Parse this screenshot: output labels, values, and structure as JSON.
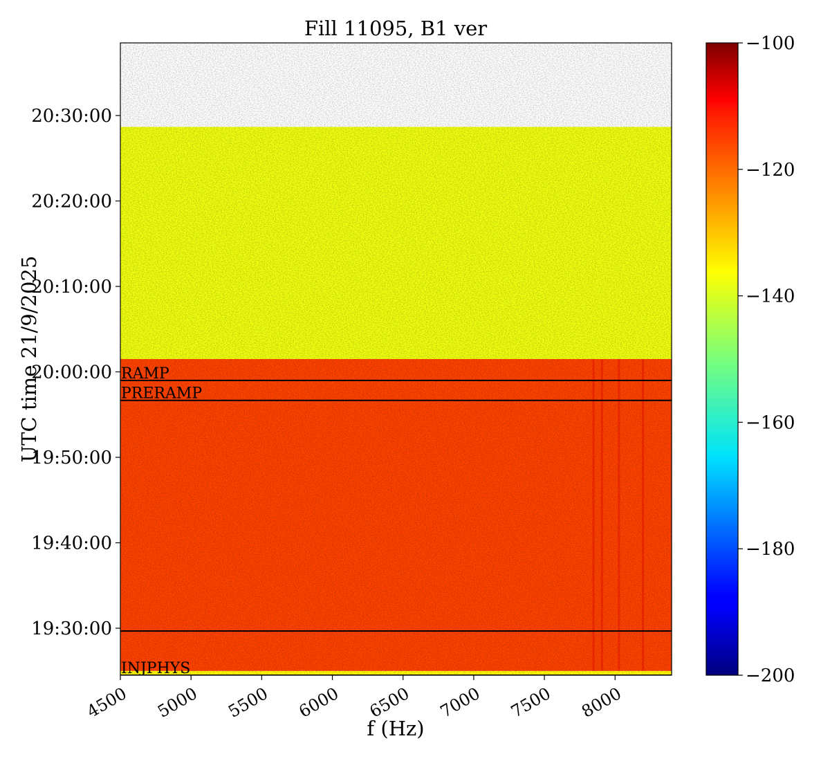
{
  "chart_data": {
    "type": "heatmap",
    "title": "Fill 11095, B1 ver",
    "xlabel": "f (Hz)",
    "ylabel": "UTC time 21/9/2025",
    "xlim": [
      4500,
      8400
    ],
    "ylim": [
      "19:24:30",
      "20:38:30"
    ],
    "x_ticks": [
      4500,
      5000,
      5500,
      6000,
      6500,
      7000,
      7500,
      8000
    ],
    "y_ticks": [
      "19:30:00",
      "19:40:00",
      "19:50:00",
      "20:00:00",
      "20:10:00",
      "20:20:00",
      "20:30:00"
    ],
    "colorbar": {
      "colormap": "jet",
      "range": [
        -200,
        -100
      ],
      "ticks": [
        -100,
        -120,
        -140,
        -160,
        -180,
        -200
      ],
      "tick_labels": [
        "−100",
        "−120",
        "−140",
        "−160",
        "−180",
        "−200"
      ]
    },
    "data_regions": [
      {
        "time_start": "19:24:30",
        "time_end": "19:25:00",
        "level_db": -137
      },
      {
        "time_start": "19:25:00",
        "time_end": "20:01:30",
        "level_db": -119
      },
      {
        "time_start": "20:01:30",
        "time_end": "20:28:40",
        "level_db": -139
      }
    ],
    "annotations": [
      {
        "label": "RAMP",
        "time": "19:59:00"
      },
      {
        "label": "PRERAMP",
        "time": "19:56:40"
      },
      {
        "label": "",
        "time": "19:29:40"
      },
      {
        "label": "INJPHYS",
        "time": "19:24:30"
      }
    ]
  }
}
